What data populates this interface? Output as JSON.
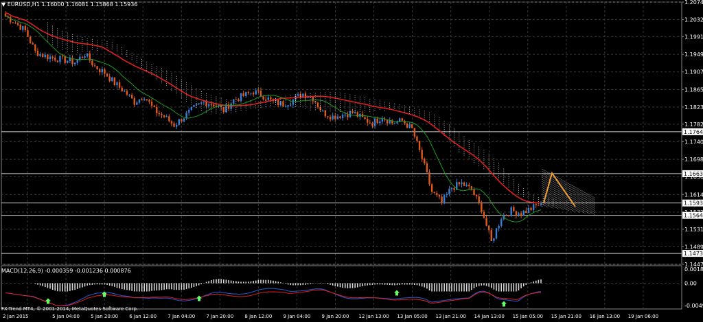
{
  "header": {
    "symbol": "EURUSD,H1",
    "ohlc": "1.16000 1.16081 1.15868 1.15936"
  },
  "macd_panel": {
    "label": "MACD(12,26,9) -0.000359 -0.001236 0.000876",
    "copyright": "FX-Trend MT4, © 2001-2014, MetaQuotes Software Corp.",
    "ticks": [
      "0.001803",
      "0.00",
      "-0.004927"
    ]
  },
  "colors": {
    "background": "#000000",
    "grid": "#3a3a3a",
    "bull_candle": "#3a7fd6",
    "bear_candle": "#e05a1e",
    "ma_slow": "#e02020",
    "ma_fast": "#1f9a1f",
    "forecast": "#f0a030",
    "cloud": "#d8d8d8",
    "macd_hist": "#d8d8d8",
    "macd_line": "#2a5bd7",
    "signal_line": "#e02020",
    "arrow": "#66ff66"
  },
  "chart_data": {
    "type": "candlestick",
    "title": "EURUSD,H1",
    "ylim": [
      1.1447,
      1.2074
    ],
    "y_ticks": [
      "1.20740",
      "1.20320",
      "1.19910",
      "1.19490",
      "1.19070",
      "1.18650",
      "1.18230",
      "1.17820",
      "1.17400",
      "1.16980",
      "1.16560",
      "1.16140",
      "1.15720",
      "1.15310",
      "1.14890",
      "1.14470"
    ],
    "y_tick_values": [
      1.2074,
      1.2032,
      1.1991,
      1.1949,
      1.1907,
      1.1865,
      1.1823,
      1.1782,
      1.174,
      1.1698,
      1.1656,
      1.1614,
      1.1572,
      1.1531,
      1.1489,
      1.1447
    ],
    "price_markers": [
      {
        "label": "1.17640",
        "value": 1.1764
      },
      {
        "label": "1.16638",
        "value": 1.16638
      },
      {
        "label": "1.15936",
        "value": 1.15936
      },
      {
        "label": "1.15641",
        "value": 1.15641
      },
      {
        "label": "1.14731",
        "value": 1.14731
      }
    ],
    "x_labels": [
      "2 Jan 2015",
      "5 Jan 04:00",
      "5 Jan 20:00",
      "6 Jan 12:00",
      "7 Jan 04:00",
      "7 Jan 20:00",
      "8 Jan 12:00",
      "9 Jan 04:00",
      "9 Jan 20:00",
      "12 Jan 13:00",
      "13 Jan 05:00",
      "13 Jan 21:00",
      "14 Jan 13:00",
      "15 Jan 05:00",
      "15 Jan 21:00",
      "16 Jan 13:00",
      "19 Jan 06:00"
    ],
    "close_path": [
      1.204,
      1.2025,
      1.2005,
      1.1955,
      1.1945,
      1.194,
      1.1935,
      1.193,
      1.195,
      1.192,
      1.1905,
      1.188,
      1.186,
      1.1835,
      1.185,
      1.1815,
      1.18,
      1.178,
      1.18,
      1.182,
      1.1835,
      1.183,
      1.1815,
      1.184,
      1.185,
      1.186,
      1.185,
      1.1835,
      1.183,
      1.184,
      1.1855,
      1.1845,
      1.181,
      1.18,
      1.1805,
      1.181,
      1.1795,
      1.1785,
      1.18,
      1.1785,
      1.179,
      1.177,
      1.17,
      1.162,
      1.1595,
      1.163,
      1.164,
      1.1625,
      1.158,
      1.15,
      1.156,
      1.1575,
      1.157,
      1.158,
      1.1594
    ],
    "forecast": [
      {
        "label": "peak",
        "value": 1.1665
      },
      {
        "label": "end",
        "value": 1.1585
      }
    ]
  }
}
